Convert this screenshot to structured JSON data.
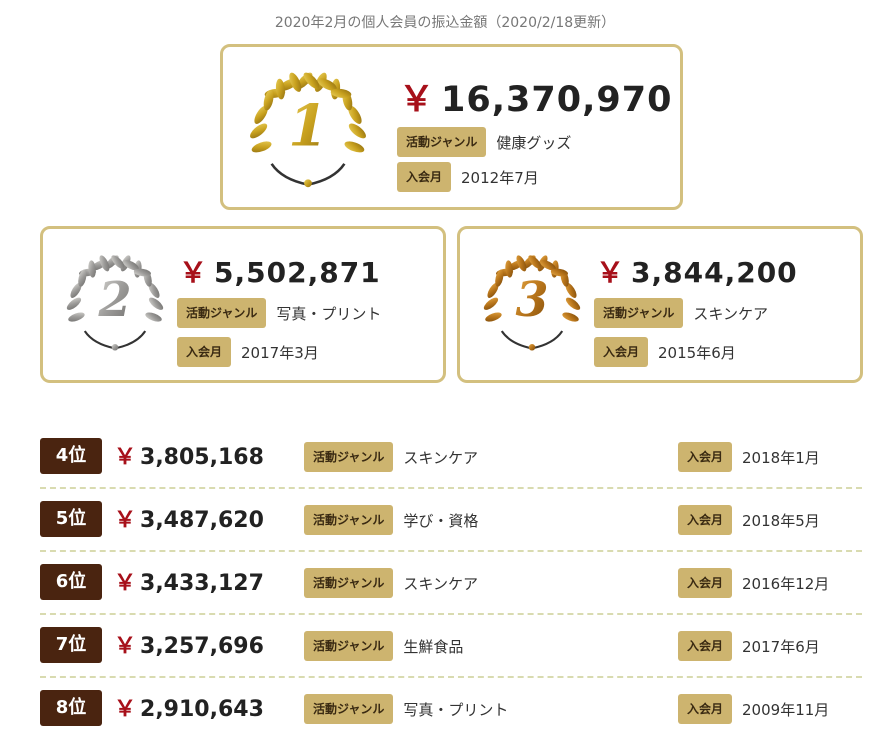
{
  "subtitle": "2020年2月の個人会員の振込金額（2020/2/18更新）",
  "labels": {
    "genre_tag": "活動ジャンル",
    "join_tag": "入会月",
    "yen": "￥"
  },
  "colors": {
    "gold": "#d3c07f",
    "tag_bg": "#cdb46f",
    "yen_red": "#a7101a",
    "rank_badge": "#4a2410",
    "wreath_gold": "#c9a21f",
    "wreath_silver": "#9b9a98",
    "wreath_bronze": "#b7741a"
  },
  "top": [
    {
      "rank": "1",
      "amount": "16,370,970",
      "genre": "健康グッズ",
      "joined": "2012年7月",
      "icon": "gold-laurel-wreath-icon"
    },
    {
      "rank": "2",
      "amount": "5,502,871",
      "genre": "写真・プリント",
      "joined": "2017年3月",
      "icon": "silver-laurel-wreath-icon"
    },
    {
      "rank": "3",
      "amount": "3,844,200",
      "genre": "スキンケア",
      "joined": "2015年6月",
      "icon": "bronze-laurel-wreath-icon"
    }
  ],
  "ranking": [
    {
      "rank": "4位",
      "amount": "3,805,168",
      "genre": "スキンケア",
      "joined": "2018年1月"
    },
    {
      "rank": "5位",
      "amount": "3,487,620",
      "genre": "学び・資格",
      "joined": "2018年5月"
    },
    {
      "rank": "6位",
      "amount": "3,433,127",
      "genre": "スキンケア",
      "joined": "2016年12月"
    },
    {
      "rank": "7位",
      "amount": "3,257,696",
      "genre": "生鮮食品",
      "joined": "2017年6月"
    },
    {
      "rank": "8位",
      "amount": "2,910,643",
      "genre": "写真・プリント",
      "joined": "2009年11月"
    }
  ]
}
